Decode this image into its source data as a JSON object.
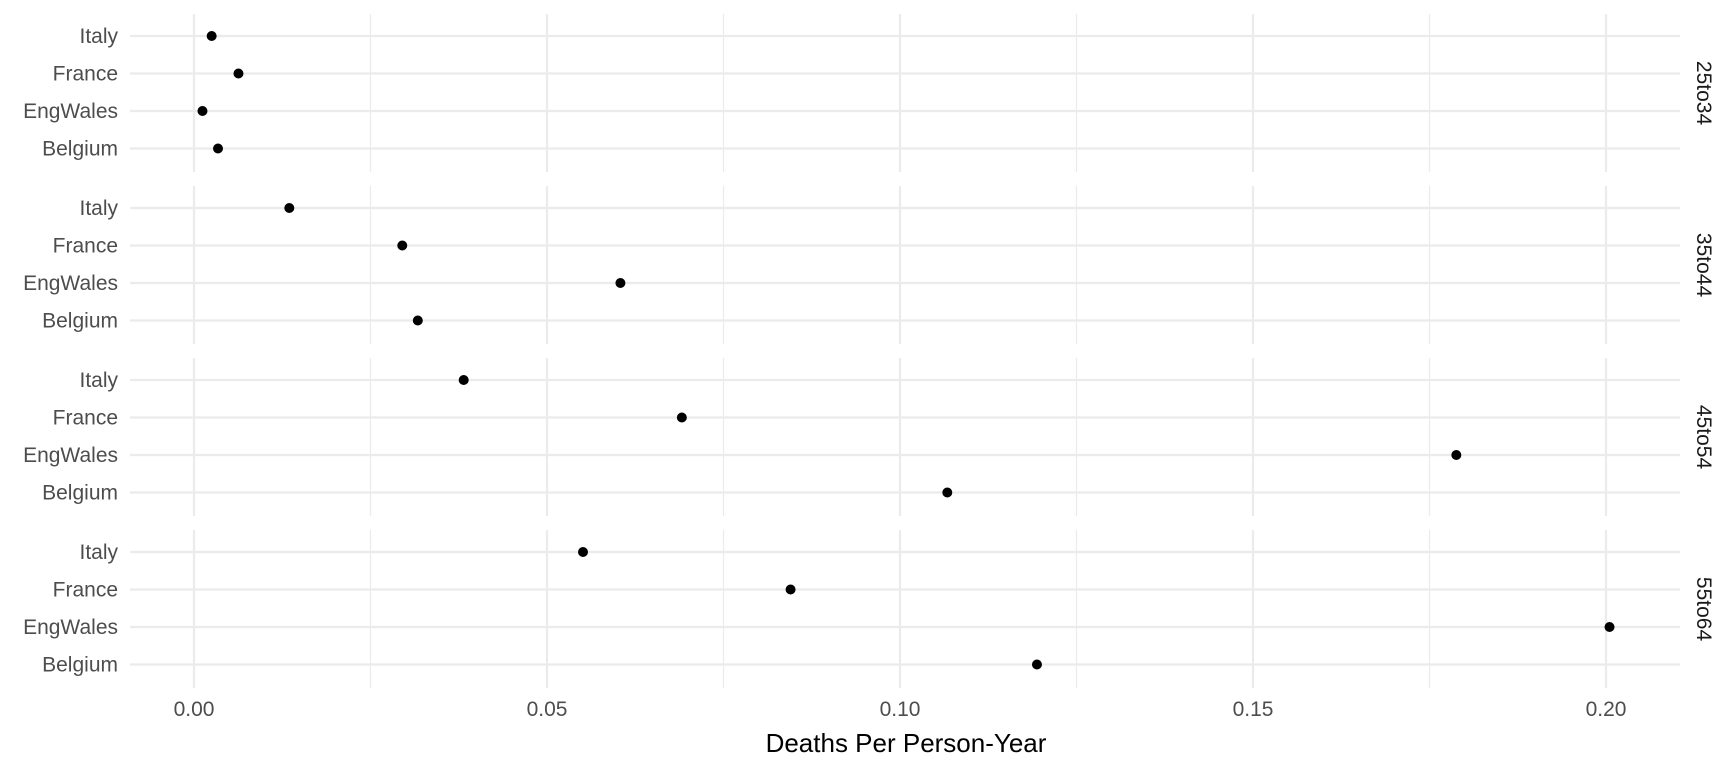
{
  "chart_data": {
    "type": "scatter",
    "xlabel": "Deaths Per Person-Year",
    "ylabel": "",
    "xlim": [
      -0.009,
      0.211
    ],
    "x_ticks": [
      {
        "value": 0.0,
        "label": "0.00"
      },
      {
        "value": 0.05,
        "label": "0.05"
      },
      {
        "value": 0.1,
        "label": "0.10"
      },
      {
        "value": 0.15,
        "label": "0.15"
      },
      {
        "value": 0.2,
        "label": "0.20"
      }
    ],
    "categories": [
      "Italy",
      "France",
      "EngWales",
      "Belgium"
    ],
    "grid": true,
    "point_color": "#000000",
    "grid_color": "#ebebeb",
    "panels": [
      {
        "facet": "25to34",
        "points": [
          {
            "country": "Italy",
            "value": 0.0025
          },
          {
            "country": "France",
            "value": 0.0063
          },
          {
            "country": "EngWales",
            "value": 0.0012
          },
          {
            "country": "Belgium",
            "value": 0.0034
          }
        ]
      },
      {
        "facet": "35to44",
        "points": [
          {
            "country": "Italy",
            "value": 0.0135
          },
          {
            "country": "France",
            "value": 0.0295
          },
          {
            "country": "EngWales",
            "value": 0.0604
          },
          {
            "country": "Belgium",
            "value": 0.0317
          }
        ]
      },
      {
        "facet": "45to54",
        "points": [
          {
            "country": "Italy",
            "value": 0.0382
          },
          {
            "country": "France",
            "value": 0.0691
          },
          {
            "country": "EngWales",
            "value": 0.1788
          },
          {
            "country": "Belgium",
            "value": 0.1067
          }
        ]
      },
      {
        "facet": "55to64",
        "points": [
          {
            "country": "Italy",
            "value": 0.0551
          },
          {
            "country": "France",
            "value": 0.0845
          },
          {
            "country": "EngWales",
            "value": 0.2005
          },
          {
            "country": "Belgium",
            "value": 0.1194
          }
        ]
      }
    ]
  }
}
